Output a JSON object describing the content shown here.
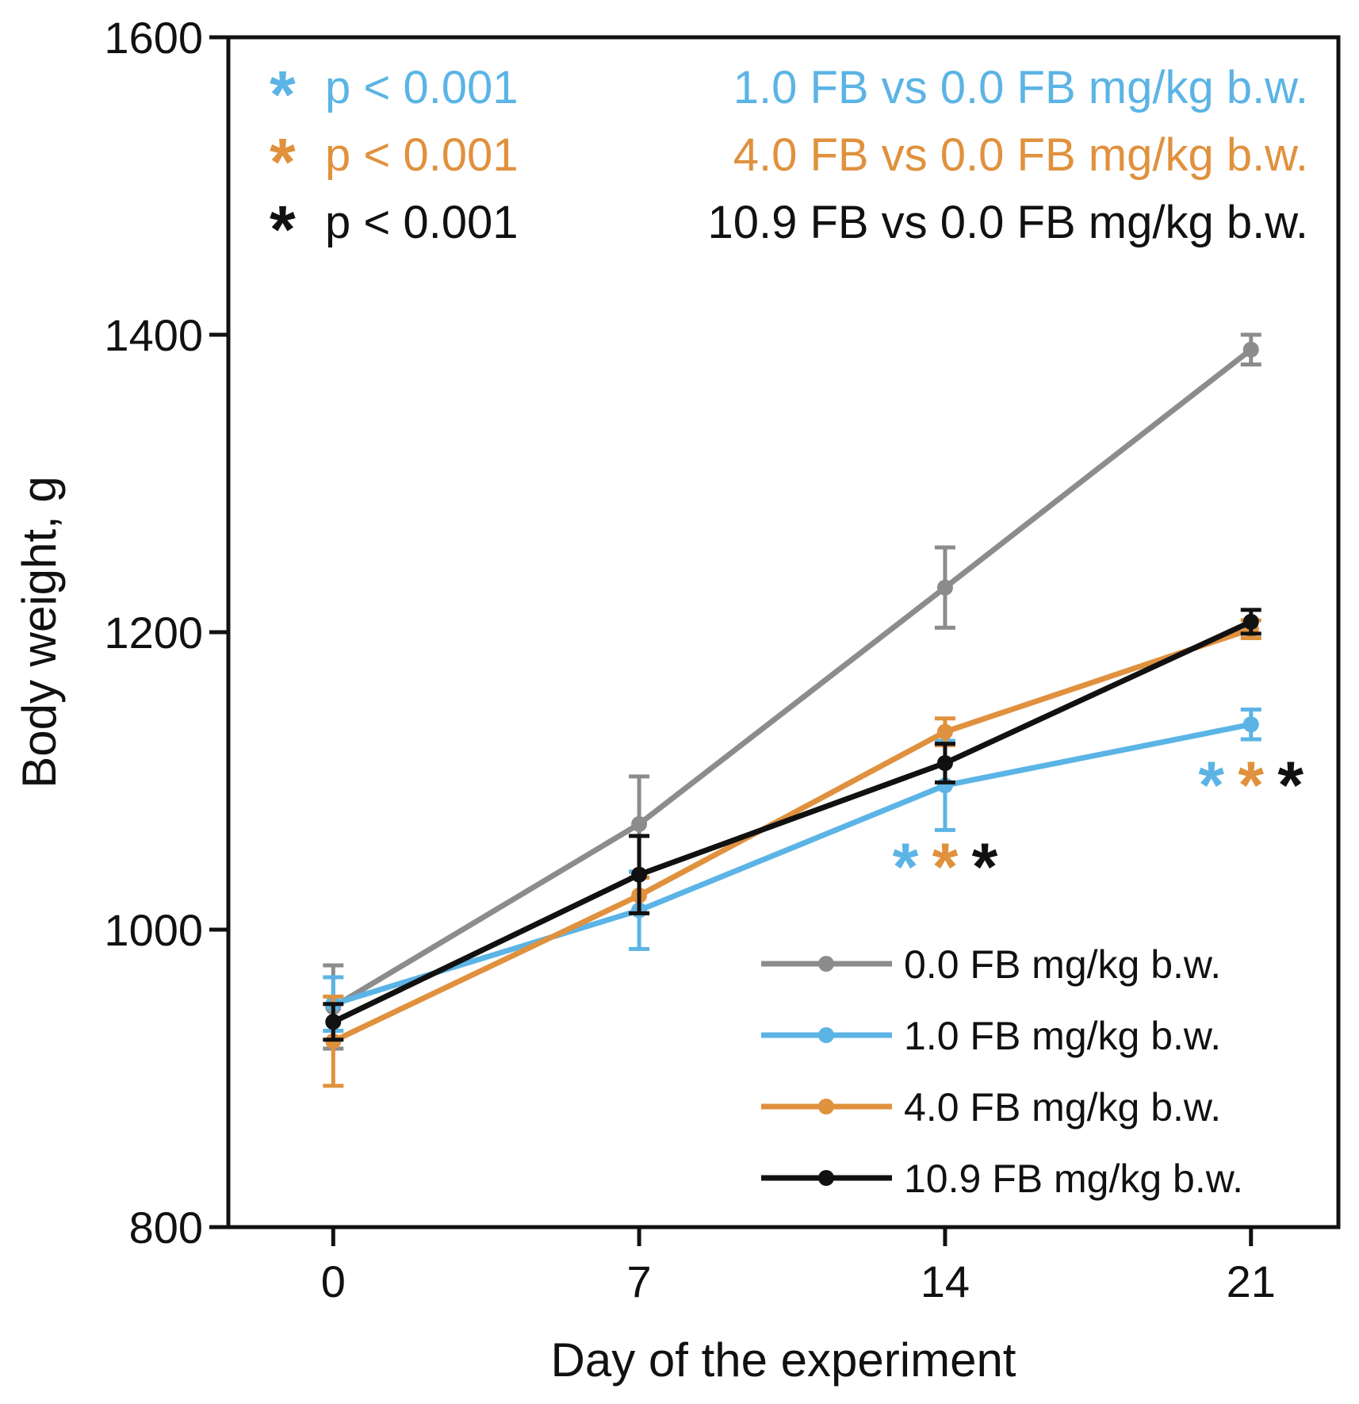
{
  "chart_data": {
    "type": "line",
    "xlabel": "Day of the experiment",
    "ylabel": "Body weight, g",
    "x": [
      0,
      7,
      14,
      21
    ],
    "xlim": [
      -2.4,
      23
    ],
    "ylim": [
      800,
      1600
    ],
    "yticks": [
      800,
      1000,
      1200,
      1400,
      1600
    ],
    "xticks": [
      0,
      7,
      14,
      21
    ],
    "grid": false,
    "series": [
      {
        "name": "0.0 FB mg/kg b.w.",
        "color": "#8c8c8c",
        "values": [
          948,
          1071,
          1230,
          1390
        ],
        "errors": [
          28,
          32,
          27,
          10
        ]
      },
      {
        "name": "1.0 FB mg/kg b.w.",
        "color": "#5bb4e5",
        "values": [
          950,
          1013,
          1097,
          1138
        ],
        "errors": [
          18,
          26,
          30,
          10
        ]
      },
      {
        "name": "4.0 FB mg/kg b.w.",
        "color": "#e0913d",
        "values": [
          925,
          1023,
          1133,
          1202
        ],
        "errors": [
          30,
          12,
          9,
          6
        ]
      },
      {
        "name": "10.9 FB mg/kg b.w.",
        "color": "#111111",
        "values": [
          938,
          1037,
          1112,
          1207
        ],
        "errors": [
          12,
          26,
          13,
          8
        ]
      }
    ],
    "legend_position": "bottom-right",
    "significance_notes": [
      {
        "star": "*",
        "text": "p < 0.001",
        "comparison": "1.0 FB vs 0.0 FB mg/kg b.w.",
        "color": "#5bb4e5"
      },
      {
        "star": "*",
        "text": "p < 0.001",
        "comparison": "4.0 FB vs 0.0 FB mg/kg b.w.",
        "color": "#e0913d"
      },
      {
        "star": "*",
        "text": "p < 0.001",
        "comparison": "10.9 FB vs 0.0 FB mg/kg b.w.",
        "color": "#111111"
      }
    ],
    "significance_markers": [
      {
        "day": 14,
        "y": 1043,
        "stars": [
          "*",
          "*",
          "*"
        ],
        "colors": [
          "#5bb4e5",
          "#e0913d",
          "#111111"
        ]
      },
      {
        "day": 21,
        "y": 1098,
        "stars": [
          "*",
          "*",
          "*"
        ],
        "colors": [
          "#5bb4e5",
          "#e0913d",
          "#111111"
        ]
      }
    ]
  }
}
